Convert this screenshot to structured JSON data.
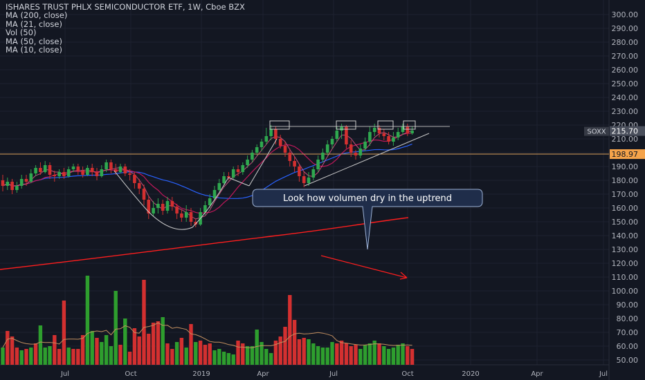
{
  "legend": {
    "title": "ISHARES TRUST PHLX SEMICONDUCTOR ETF, 1W, Cboe BZX",
    "studies": [
      "MA (200, close)",
      "MA (21, close)",
      "Vol (50)",
      "MA (50, close)",
      "MA (10, close)"
    ]
  },
  "colors": {
    "background": "#131722",
    "up": "#26a69a",
    "up_green": "#2e9e2e",
    "down": "#d33030",
    "ma200": "#ff1e1e",
    "ma50": "#2962ff",
    "ma21": "#c2185b",
    "ma10": "#f06292",
    "grid": "#1e2230",
    "axis_text": "#b2b5be",
    "callout_bg": "#1f2d4a",
    "callout_border": "#9fb4d8"
  },
  "annotation": {
    "text": "Look how volumen dry in the uptrend"
  },
  "chart_data": {
    "type": "candlestick",
    "title": "ISHARES TRUST PHLX SEMICONDUCTOR ETF, 1W, Cboe BZX",
    "symbol": "SOXX",
    "last_price": "215.70",
    "price_line_label": "198.97",
    "price_line_value": 198.97,
    "ylim": [
      45,
      305
    ],
    "y_ticks": [
      "300.00",
      "290.00",
      "280.00",
      "270.00",
      "260.00",
      "250.00",
      "240.00",
      "230.00",
      "220.00",
      "210.00",
      "200.00",
      "190.00",
      "180.00",
      "170.00",
      "160.00",
      "150.00",
      "140.00",
      "130.00",
      "120.00",
      "110.00",
      "100.00",
      "90.00",
      "80.00",
      "70.00",
      "60.00",
      "50.00"
    ],
    "x_ticks": [
      "Jul",
      "Oct",
      "2019",
      "Apr",
      "Jul",
      "Oct",
      "2020",
      "Apr",
      "Jul"
    ],
    "candles": [
      [
        180,
        176,
        184,
        172
      ],
      [
        176,
        179,
        182,
        173
      ],
      [
        179,
        173,
        181,
        170
      ],
      [
        173,
        176,
        179,
        171
      ],
      [
        176,
        181,
        184,
        174
      ],
      [
        181,
        179,
        184,
        176
      ],
      [
        179,
        185,
        188,
        178
      ],
      [
        185,
        189,
        191,
        183
      ],
      [
        189,
        186,
        193,
        184
      ],
      [
        186,
        191,
        194,
        185
      ],
      [
        191,
        184,
        193,
        181
      ],
      [
        184,
        183,
        187,
        179
      ],
      [
        183,
        186,
        188,
        181
      ],
      [
        186,
        183,
        189,
        181
      ],
      [
        183,
        188,
        190,
        182
      ],
      [
        188,
        190,
        192,
        186
      ],
      [
        190,
        187,
        192,
        184
      ],
      [
        187,
        184,
        190,
        182
      ],
      [
        184,
        189,
        191,
        183
      ],
      [
        189,
        186,
        192,
        183
      ],
      [
        186,
        183,
        189,
        180
      ],
      [
        183,
        188,
        191,
        182
      ],
      [
        188,
        193,
        195,
        186
      ],
      [
        193,
        188,
        195,
        185
      ],
      [
        188,
        186,
        192,
        184
      ],
      [
        186,
        190,
        192,
        185
      ],
      [
        190,
        185,
        192,
        183
      ],
      [
        185,
        184,
        188,
        180
      ],
      [
        184,
        178,
        186,
        174
      ],
      [
        178,
        174,
        181,
        170
      ],
      [
        174,
        166,
        177,
        162
      ],
      [
        166,
        156,
        169,
        152
      ],
      [
        156,
        160,
        165,
        154
      ],
      [
        160,
        163,
        167,
        156
      ],
      [
        163,
        158,
        166,
        155
      ],
      [
        158,
        165,
        168,
        156
      ],
      [
        165,
        161,
        168,
        158
      ],
      [
        161,
        156,
        163,
        152
      ],
      [
        156,
        153,
        159,
        150
      ],
      [
        153,
        157,
        162,
        150
      ],
      [
        157,
        150,
        160,
        147
      ],
      [
        150,
        148,
        152,
        146
      ],
      [
        148,
        157,
        160,
        147
      ],
      [
        157,
        162,
        165,
        155
      ],
      [
        162,
        167,
        170,
        160
      ],
      [
        167,
        173,
        176,
        166
      ],
      [
        173,
        178,
        181,
        172
      ],
      [
        178,
        183,
        186,
        177
      ],
      [
        183,
        182,
        186,
        180
      ],
      [
        182,
        188,
        190,
        181
      ],
      [
        188,
        186,
        191,
        183
      ],
      [
        186,
        191,
        193,
        184
      ],
      [
        191,
        195,
        198,
        189
      ],
      [
        195,
        200,
        202,
        193
      ],
      [
        200,
        204,
        206,
        198
      ],
      [
        204,
        208,
        210,
        201
      ],
      [
        208,
        212,
        218,
        206
      ],
      [
        212,
        217,
        220,
        209
      ],
      [
        217,
        210,
        219,
        206
      ],
      [
        210,
        205,
        213,
        203
      ],
      [
        205,
        200,
        208,
        197
      ],
      [
        200,
        194,
        203,
        190
      ],
      [
        194,
        190,
        197,
        186
      ],
      [
        190,
        183,
        192,
        179
      ],
      [
        183,
        178,
        186,
        175
      ],
      [
        178,
        182,
        186,
        176
      ],
      [
        182,
        188,
        190,
        180
      ],
      [
        188,
        195,
        198,
        186
      ],
      [
        195,
        200,
        203,
        193
      ],
      [
        200,
        206,
        209,
        198
      ],
      [
        206,
        210,
        212,
        203
      ],
      [
        210,
        216,
        219,
        208
      ],
      [
        216,
        219,
        221,
        210
      ],
      [
        219,
        206,
        220,
        203
      ],
      [
        206,
        200,
        209,
        197
      ],
      [
        200,
        198,
        202,
        195
      ],
      [
        198,
        203,
        206,
        196
      ],
      [
        203,
        208,
        211,
        201
      ],
      [
        208,
        215,
        219,
        205
      ],
      [
        215,
        218,
        221,
        212
      ],
      [
        218,
        214,
        220,
        211
      ],
      [
        214,
        212,
        217,
        209
      ],
      [
        212,
        208,
        215,
        206
      ],
      [
        208,
        211,
        215,
        205
      ],
      [
        211,
        215,
        218,
        209
      ],
      [
        215,
        219,
        221,
        213
      ],
      [
        219,
        214,
        221,
        212
      ],
      [
        214,
        216,
        219,
        213
      ]
    ],
    "volume": [
      {
        "v": 59,
        "up": true
      },
      {
        "v": 71,
        "up": false
      },
      {
        "v": 67,
        "up": false
      },
      {
        "v": 59,
        "up": false
      },
      {
        "v": 57,
        "up": true
      },
      {
        "v": 58,
        "up": false
      },
      {
        "v": 59,
        "up": true
      },
      {
        "v": 62,
        "up": false
      },
      {
        "v": 75,
        "up": true
      },
      {
        "v": 59,
        "up": true
      },
      {
        "v": 60,
        "up": true
      },
      {
        "v": 68,
        "up": false
      },
      {
        "v": 58,
        "up": false
      },
      {
        "v": 93,
        "up": false
      },
      {
        "v": 59,
        "up": true
      },
      {
        "v": 58,
        "up": false
      },
      {
        "v": 58,
        "up": false
      },
      {
        "v": 68,
        "up": false
      },
      {
        "v": 111,
        "up": true
      },
      {
        "v": 71,
        "up": true
      },
      {
        "v": 66,
        "up": false
      },
      {
        "v": 63,
        "up": true
      },
      {
        "v": 68,
        "up": true
      },
      {
        "v": 60,
        "up": true
      },
      {
        "v": 100,
        "up": true
      },
      {
        "v": 61,
        "up": false
      },
      {
        "v": 80,
        "up": true
      },
      {
        "v": 56,
        "up": false
      },
      {
        "v": 73,
        "up": false
      },
      {
        "v": 67,
        "up": false
      },
      {
        "v": 108,
        "up": false
      },
      {
        "v": 69,
        "up": false
      },
      {
        "v": 77,
        "up": false
      },
      {
        "v": 78,
        "up": false
      },
      {
        "v": 81,
        "up": true
      },
      {
        "v": 62,
        "up": false
      },
      {
        "v": 58,
        "up": false
      },
      {
        "v": 63,
        "up": true
      },
      {
        "v": 66,
        "up": false
      },
      {
        "v": 59,
        "up": true
      },
      {
        "v": 76,
        "up": false
      },
      {
        "v": 63,
        "up": true
      },
      {
        "v": 64,
        "up": false
      },
      {
        "v": 61,
        "up": false
      },
      {
        "v": 62,
        "up": false
      },
      {
        "v": 57,
        "up": true
      },
      {
        "v": 58,
        "up": true
      },
      {
        "v": 56,
        "up": true
      },
      {
        "v": 55,
        "up": true
      },
      {
        "v": 54,
        "up": true
      },
      {
        "v": 64,
        "up": false
      },
      {
        "v": 62,
        "up": false
      },
      {
        "v": 60,
        "up": true
      },
      {
        "v": 60,
        "up": true
      },
      {
        "v": 72,
        "up": true
      },
      {
        "v": 63,
        "up": true
      },
      {
        "v": 58,
        "up": true
      },
      {
        "v": 55,
        "up": true
      },
      {
        "v": 64,
        "up": false
      },
      {
        "v": 67,
        "up": false
      },
      {
        "v": 74,
        "up": false
      },
      {
        "v": 97,
        "up": false
      },
      {
        "v": 79,
        "up": false
      },
      {
        "v": 65,
        "up": false
      },
      {
        "v": 66,
        "up": false
      },
      {
        "v": 65,
        "up": true
      },
      {
        "v": 62,
        "up": true
      },
      {
        "v": 60,
        "up": true
      },
      {
        "v": 59,
        "up": true
      },
      {
        "v": 59,
        "up": true
      },
      {
        "v": 63,
        "up": true
      },
      {
        "v": 62,
        "up": false
      },
      {
        "v": 64,
        "up": false
      },
      {
        "v": 62,
        "up": false
      },
      {
        "v": 60,
        "up": false
      },
      {
        "v": 61,
        "up": false
      },
      {
        "v": 58,
        "up": true
      },
      {
        "v": 61,
        "up": true
      },
      {
        "v": 62,
        "up": true
      },
      {
        "v": 64,
        "up": true
      },
      {
        "v": 62,
        "up": false
      },
      {
        "v": 60,
        "up": true
      },
      {
        "v": 58,
        "up": true
      },
      {
        "v": 59,
        "up": true
      },
      {
        "v": 61,
        "up": true
      },
      {
        "v": 62,
        "up": true
      },
      {
        "v": 60,
        "up": false
      },
      {
        "v": 58,
        "up": false
      }
    ],
    "grid": true
  }
}
